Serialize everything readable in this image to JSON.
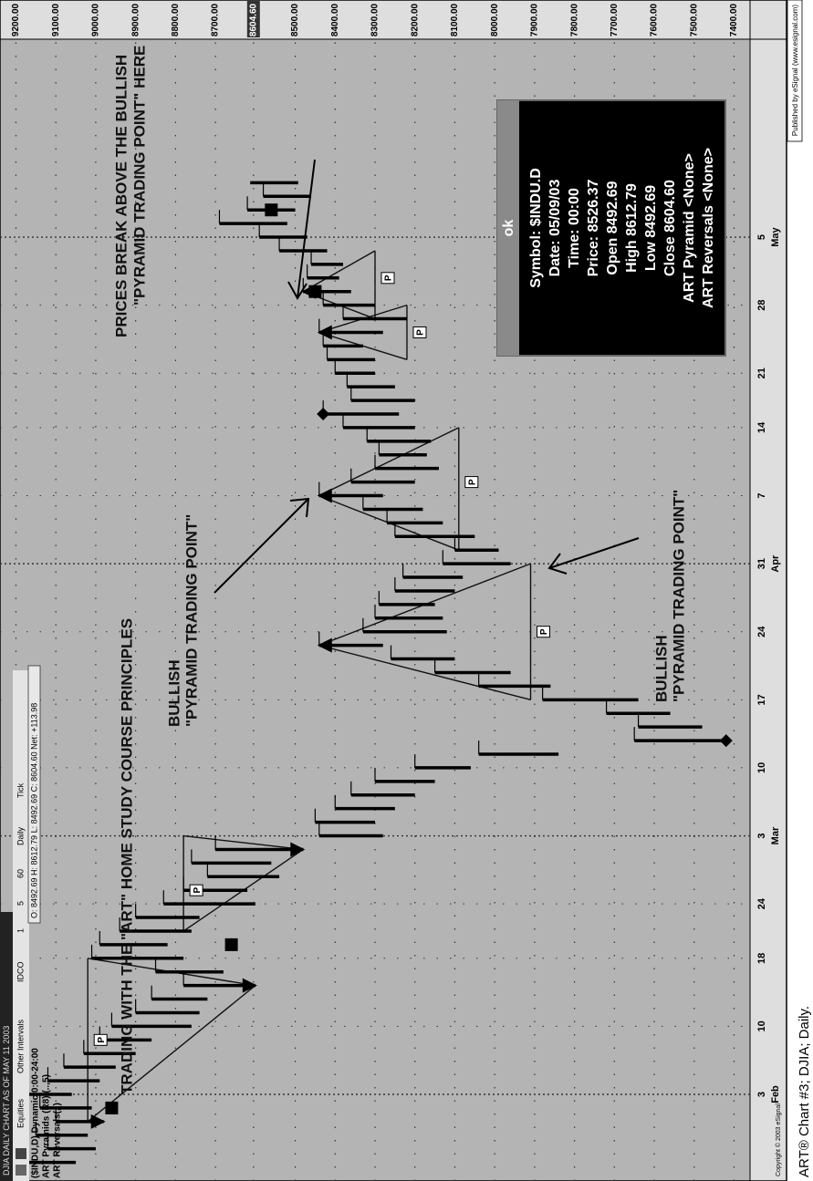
{
  "window_title": "DJIA DAILY CHART AS OF MAY 11 2003",
  "toolbar": [
    "Equities",
    "Other Intervals",
    "IDCO",
    "1",
    "5",
    "60",
    "Daily",
    "Tick"
  ],
  "status": "O: 8492.69  H: 8612.79  L: 8492.69  C: 8604.60  Net: +113.98",
  "studies": [
    "($INDU,D) Dynamic,0:00-24:00",
    "ART Pyramids (R8),(..,5)",
    "ART Reversals(,,)"
  ],
  "popup": {
    "title": "ok",
    "lines": [
      "Symbol: $INDU.D",
      "Date: 05/09/03",
      "Time: 00:00",
      "Price: 8526.37",
      "Open 8492.69",
      "High 8612.79",
      "Low 8492.69",
      "Close 8604.60",
      "ART Pyramid <None>",
      "ART Reversals <None>"
    ]
  },
  "copyright": "Copyright © 2003 eSignal",
  "publisher": "Published by eSignal (www.esignal.com)",
  "caption": "ART® Chart #3; DJIA; Daily.",
  "chart_data": {
    "type": "ohlc",
    "title": "TRADING WITH THE \"ART\" HOME STUDY COURSE PRINCIPLES",
    "annotations": [
      {
        "lines": [
          "BULLISH",
          "\"PYRAMID TRADING POINT\""
        ]
      },
      {
        "lines": [
          "BULLISH",
          "\"PYRAMID TRADING POINT\""
        ]
      },
      {
        "lines": [
          "PRICES BREAK ABOVE THE BULLISH",
          "\"PYRAMID TRADING POINT\" HERE"
        ]
      }
    ],
    "categories": [
      null,
      null,
      null,
      null,
      null,
      "3",
      null,
      null,
      null,
      null,
      "10",
      null,
      null,
      null,
      null,
      "18",
      null,
      null,
      null,
      "24",
      null,
      null,
      null,
      null,
      "3",
      null,
      null,
      null,
      null,
      "10",
      null,
      null,
      null,
      null,
      "17",
      null,
      null,
      null,
      null,
      "24",
      null,
      null,
      null,
      null,
      "31",
      null,
      null,
      null,
      null,
      "7",
      null,
      null,
      null,
      null,
      "14",
      null,
      null,
      null,
      "21",
      null,
      null,
      null,
      null,
      "28",
      null,
      null,
      null,
      null,
      "5",
      null,
      null,
      null,
      null
    ],
    "months": [
      null,
      null,
      null,
      null,
      null,
      "Feb",
      null,
      null,
      null,
      null,
      null,
      null,
      null,
      null,
      null,
      null,
      null,
      null,
      null,
      null,
      null,
      null,
      null,
      null,
      "Mar",
      null,
      null,
      null,
      null,
      null,
      null,
      null,
      null,
      null,
      null,
      null,
      null,
      null,
      null,
      null,
      null,
      null,
      null,
      null,
      "Apr",
      null,
      null,
      null,
      null,
      null,
      null,
      null,
      null,
      null,
      null,
      null,
      null,
      null,
      null,
      null,
      null,
      null,
      null,
      null,
      null,
      null,
      null,
      null,
      "May",
      null,
      null,
      null,
      null
    ],
    "low": [
      9050,
      9000,
      9020,
      8980,
      9010,
      9060,
      8990,
      8950,
      8900,
      8860,
      8760,
      8740,
      8720,
      8600,
      8680,
      8780,
      8820,
      8760,
      8740,
      8600,
      8620,
      8540,
      8560,
      8480,
      8280,
      8300,
      8250,
      8200,
      8150,
      8060,
      7840,
      7420,
      7480,
      7560,
      7640,
      7860,
      7960,
      8100,
      8280,
      8120,
      8130,
      8150,
      8100,
      8080,
      7960,
      7990,
      8050,
      8130,
      8180,
      8280,
      8200,
      8140,
      8170,
      8160,
      8200,
      8240,
      8200,
      8250,
      8300,
      8300,
      8330,
      8280,
      8220,
      8300,
      8360,
      8390,
      8380,
      8420,
      8470,
      8520,
      8500,
      8460,
      8492.69
    ],
    "high": [
      9180,
      9120,
      9150,
      9100,
      9140,
      9190,
      9120,
      9080,
      9030,
      8990,
      8960,
      8900,
      8860,
      8780,
      8850,
      9010,
      8990,
      8940,
      8900,
      8830,
      8780,
      8720,
      8760,
      8700,
      8440,
      8450,
      8400,
      8360,
      8300,
      8200,
      8040,
      7650,
      7640,
      7720,
      7880,
      8040,
      8150,
      8260,
      8440,
      8330,
      8300,
      8290,
      8250,
      8230,
      8130,
      8100,
      8250,
      8270,
      8330,
      8440,
      8360,
      8300,
      8290,
      8320,
      8380,
      8430,
      8360,
      8370,
      8400,
      8420,
      8430,
      8440,
      8380,
      8430,
      8480,
      8470,
      8460,
      8540,
      8590,
      8690,
      8620,
      8580,
      8612.79
    ],
    "markers": [
      {
        "shape": "trough",
        "x": 3,
        "value": 8980
      },
      {
        "shape": "trough",
        "x": 13,
        "value": 8600
      },
      {
        "shape": "trough",
        "x": 23,
        "value": 8480
      },
      {
        "shape": "peak",
        "x": 38,
        "value": 8440
      },
      {
        "shape": "peak",
        "x": 49,
        "value": 8440
      },
      {
        "shape": "peak",
        "x": 61,
        "value": 8440
      },
      {
        "shape": "peak",
        "x": 64,
        "value": 8480
      },
      {
        "shape": "diamond",
        "x": 31,
        "value": 7420
      },
      {
        "shape": "diamond",
        "x": 55,
        "value": 8430
      },
      {
        "shape": "square",
        "x": 4,
        "value": 8960
      },
      {
        "shape": "square",
        "x": 16,
        "value": 8660
      },
      {
        "shape": "square",
        "x": 64,
        "value": 8450
      },
      {
        "shape": "square",
        "x": 70,
        "value": 8560
      }
    ],
    "pyramid_lines": [
      {
        "x": [
          3,
          13
        ],
        "values": [
          9020,
          8600
        ]
      },
      {
        "x": [
          15,
          13
        ],
        "values": [
          9020,
          8600
        ]
      },
      {
        "x": [
          3,
          15
        ],
        "values": [
          9020,
          9020
        ]
      },
      {
        "x": [
          17,
          23
        ],
        "values": [
          8780,
          8480
        ]
      },
      {
        "x": [
          24,
          23
        ],
        "values": [
          8780,
          8480
        ]
      },
      {
        "x": [
          17,
          24
        ],
        "values": [
          8780,
          8780
        ]
      },
      {
        "x": [
          34,
          38
        ],
        "values": [
          7910,
          8440
        ]
      },
      {
        "x": [
          44,
          38
        ],
        "values": [
          7910,
          8440
        ]
      },
      {
        "x": [
          34,
          44
        ],
        "values": [
          7910,
          7910
        ]
      },
      {
        "x": [
          45,
          49
        ],
        "values": [
          8090,
          8440
        ]
      },
      {
        "x": [
          54,
          49
        ],
        "values": [
          8090,
          8440
        ]
      },
      {
        "x": [
          45,
          54
        ],
        "values": [
          8090,
          8090
        ]
      },
      {
        "x": [
          59,
          61
        ],
        "values": [
          8220,
          8440
        ]
      },
      {
        "x": [
          63,
          61
        ],
        "values": [
          8220,
          8440
        ]
      },
      {
        "x": [
          59,
          63
        ],
        "values": [
          8220,
          8220
        ]
      },
      {
        "x": [
          62,
          64
        ],
        "values": [
          8300,
          8480
        ]
      },
      {
        "x": [
          67,
          64
        ],
        "values": [
          8300,
          8480
        ]
      },
      {
        "x": [
          62,
          67
        ],
        "values": [
          8300,
          8300
        ]
      }
    ],
    "p_labels": [
      {
        "label": "P",
        "x": 9,
        "value": 9020
      },
      {
        "label": "P",
        "x": 20,
        "value": 8780
      },
      {
        "label": "P",
        "x": 39,
        "value": 7910
      },
      {
        "label": "P",
        "x": 50,
        "value": 8090
      },
      {
        "label": "P",
        "x": 61,
        "value": 8220
      },
      {
        "label": "P",
        "x": 65,
        "value": 8300
      }
    ],
    "ylim": [
      7360,
      9240
    ],
    "yticks": [
      {
        "value": 9200,
        "label": "9200.00"
      },
      {
        "value": 9100,
        "label": "9100.00"
      },
      {
        "value": 9000,
        "label": "9000.00"
      },
      {
        "value": 8900,
        "label": "8900.00"
      },
      {
        "value": 8800,
        "label": "8800.00"
      },
      {
        "value": 8700,
        "label": "8700.00"
      },
      {
        "value": 8604.6,
        "label": "8604.60",
        "highlight": true
      },
      {
        "value": 8500,
        "label": "8500.00"
      },
      {
        "value": 8400,
        "label": "8400.00"
      },
      {
        "value": 8300,
        "label": "8300.00"
      },
      {
        "value": 8200,
        "label": "8200.00"
      },
      {
        "value": 8100,
        "label": "8100.00"
      },
      {
        "value": 8000,
        "label": "8000.00"
      },
      {
        "value": 7900,
        "label": "7900.00"
      },
      {
        "value": 7800,
        "label": "7800.00"
      },
      {
        "value": 7700,
        "label": "7700.00"
      },
      {
        "value": 7600,
        "label": "7600.00"
      },
      {
        "value": 7500,
        "label": "7500.00"
      },
      {
        "value": 7400,
        "label": "7400.00"
      }
    ],
    "grid": true,
    "color": "#000000",
    "background": "#b4b4b4"
  }
}
